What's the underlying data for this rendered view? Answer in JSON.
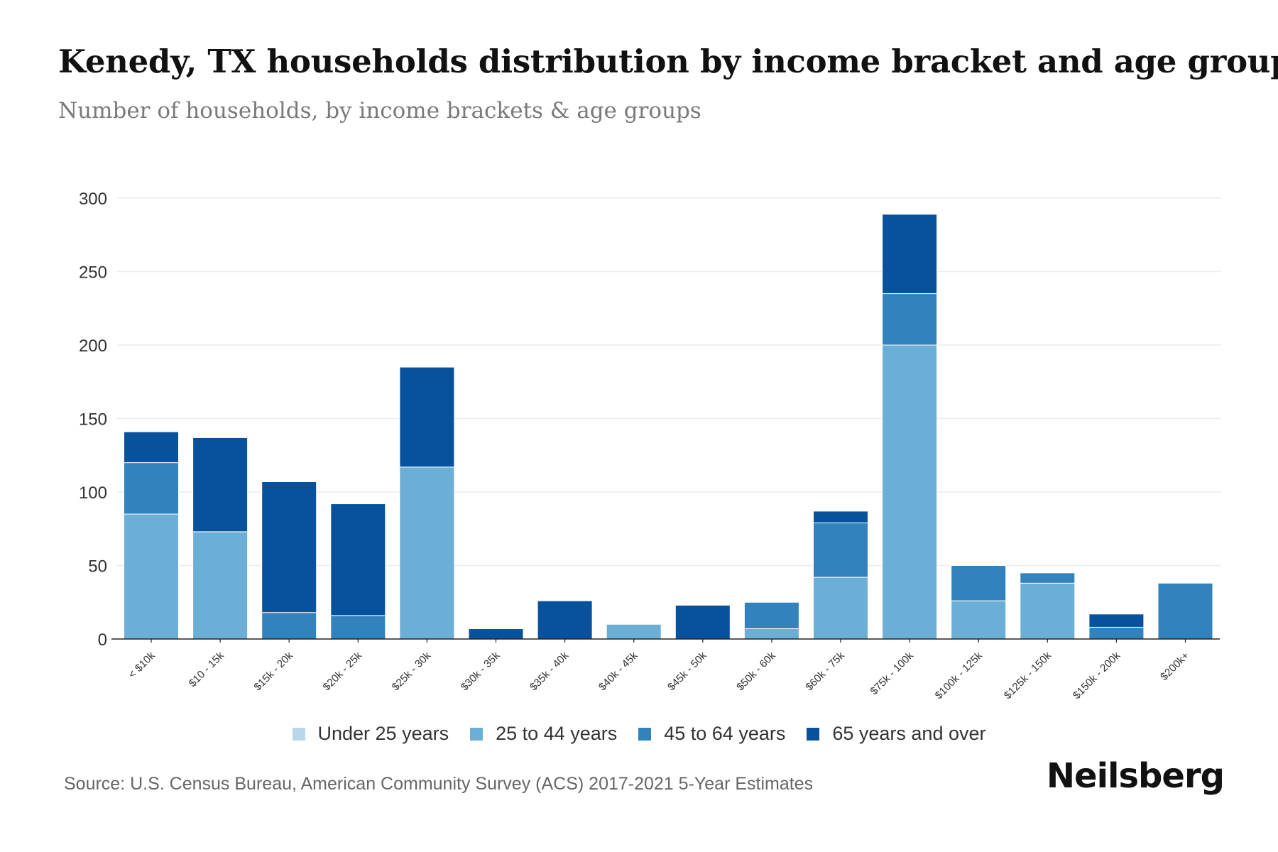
{
  "header": {
    "title": "Kenedy, TX households distribution by income bracket and age group",
    "subtitle": "Number of households, by income brackets & age groups"
  },
  "footer": {
    "source": "Source: U.S. Census Bureau, American Community Survey (ACS) 2017-2021 5-Year Estimates",
    "brand": "Neilsberg"
  },
  "chart_data": {
    "type": "bar",
    "stacked": true,
    "title": "Kenedy, TX households distribution by income bracket and age group",
    "subtitle": "Number of households, by income brackets & age groups",
    "xlabel": "",
    "ylabel": "",
    "ylim": [
      0,
      300
    ],
    "yticks": [
      0,
      50,
      100,
      150,
      200,
      250,
      300
    ],
    "grid": true,
    "legend_position": "bottom",
    "categories": [
      "< $10k",
      "$10 - 15k",
      "$15k - 20k",
      "$20k - 25k",
      "$25k - 30k",
      "$30k - 35k",
      "$35k - 40k",
      "$40k - 45k",
      "$45k - 50k",
      "$50k - 60k",
      "$60k - 75k",
      "$75k - 100k",
      "$100k - 125k",
      "$125k - 150k",
      "$150k - 200k",
      "$200k+"
    ],
    "series": [
      {
        "name": "Under 25 years",
        "color": "#b8d7ea",
        "values": [
          0,
          0,
          0,
          0,
          0,
          0,
          0,
          0,
          0,
          0,
          0,
          0,
          0,
          0,
          0,
          0
        ]
      },
      {
        "name": "25 to 44 years",
        "color": "#6baed6",
        "values": [
          85,
          73,
          0,
          0,
          117,
          0,
          0,
          10,
          0,
          7,
          42,
          200,
          26,
          38,
          0,
          0
        ]
      },
      {
        "name": "45 to 64 years",
        "color": "#3182bd",
        "values": [
          35,
          0,
          18,
          16,
          0,
          0,
          0,
          0,
          0,
          18,
          37,
          35,
          24,
          7,
          8,
          38
        ]
      },
      {
        "name": "65 years and over",
        "color": "#08519c",
        "values": [
          21,
          64,
          89,
          76,
          68,
          7,
          26,
          0,
          23,
          0,
          8,
          54,
          0,
          0,
          9,
          0
        ]
      }
    ]
  }
}
